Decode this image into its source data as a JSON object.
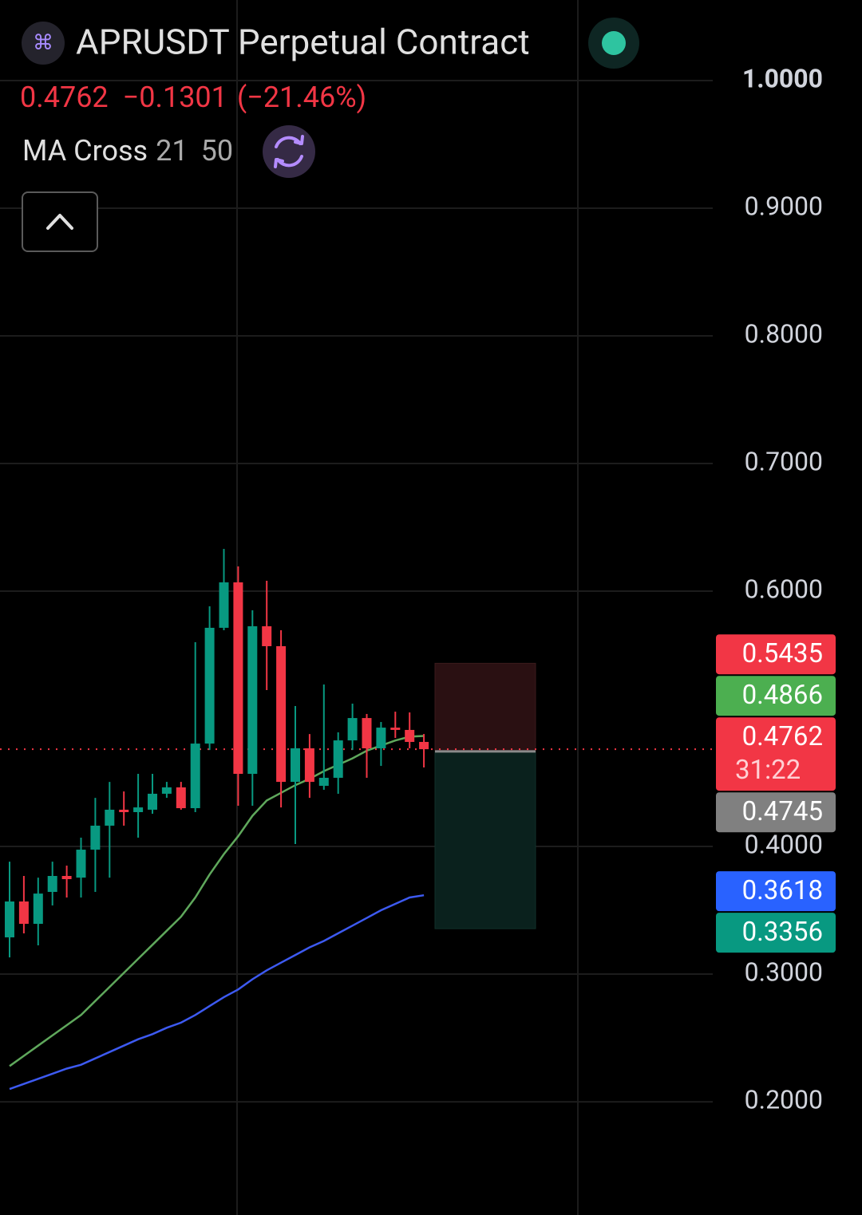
{
  "chart_data": {
    "type": "candlestick",
    "title": "APRUSDT Perpetual Contract",
    "last_price": 0.4762,
    "change": {
      "value": -0.1301,
      "label": "−0.1301"
    },
    "change_pct": {
      "value": -21.46,
      "label": "(−21.46%)"
    },
    "indicator": {
      "name": "MA Cross",
      "periods": [
        21,
        50
      ]
    },
    "up_color": "#089981",
    "down_color": "#f23645",
    "open": [
      0.3288,
      0.3569,
      0.3394,
      0.3644,
      0.3769,
      0.3756,
      0.3975,
      0.4163,
      0.4288,
      0.4269,
      0.4288,
      0.4413,
      0.4463,
      0.43,
      0.4806,
      0.5713,
      0.6069,
      0.4569,
      0.5725,
      0.5569,
      0.4506,
      0.4769,
      0.4475,
      0.4538,
      0.4831,
      0.5006,
      0.4769,
      0.4931,
      0.4913,
      0.4819
    ],
    "high": [
      0.3881,
      0.3769,
      0.3756,
      0.3881,
      0.385,
      0.4069,
      0.4381,
      0.4506,
      0.4431,
      0.4569,
      0.4569,
      0.4506,
      0.4506,
      0.56,
      0.5881,
      0.6331,
      0.6194,
      0.585,
      0.6081,
      0.5694,
      0.51,
      0.4881,
      0.5269,
      0.4894,
      0.5119,
      0.5038,
      0.4975,
      0.5056,
      0.505,
      0.4881
    ],
    "low": [
      0.3131,
      0.3319,
      0.3225,
      0.3538,
      0.36,
      0.36,
      0.3644,
      0.3756,
      0.4163,
      0.4069,
      0.4256,
      0.4381,
      0.4288,
      0.4269,
      0.4756,
      0.5694,
      0.4319,
      0.4319,
      0.5225,
      0.4306,
      0.4019,
      0.4381,
      0.4444,
      0.4413,
      0.4756,
      0.4538,
      0.4631,
      0.485,
      0.4769,
      0.4619
    ],
    "close": [
      0.3569,
      0.3394,
      0.3631,
      0.3769,
      0.3744,
      0.3975,
      0.4163,
      0.4288,
      0.4269,
      0.4306,
      0.4413,
      0.4463,
      0.43,
      0.4806,
      0.5713,
      0.6069,
      0.4569,
      0.5725,
      0.5569,
      0.4506,
      0.4769,
      0.4506,
      0.4538,
      0.4831,
      0.5006,
      0.4769,
      0.4931,
      0.4913,
      0.4819,
      0.4762
    ],
    "ma_lines": [
      {
        "color": "#5fa85c",
        "values": [
          0.228,
          0.236,
          0.244,
          0.252,
          0.26,
          0.268,
          0.279,
          0.29,
          0.301,
          0.312,
          0.323,
          0.334,
          0.345,
          0.36,
          0.378,
          0.394,
          0.408,
          0.424,
          0.436,
          0.442,
          0.448,
          0.453,
          0.459,
          0.464,
          0.469,
          0.475,
          0.479,
          0.483,
          0.486,
          0.4866
        ]
      },
      {
        "color": "#3d5af1",
        "values": [
          0.21,
          0.214,
          0.218,
          0.222,
          0.226,
          0.229,
          0.234,
          0.239,
          0.244,
          0.249,
          0.253,
          0.258,
          0.262,
          0.268,
          0.275,
          0.282,
          0.288,
          0.296,
          0.303,
          0.309,
          0.315,
          0.321,
          0.326,
          0.332,
          0.338,
          0.344,
          0.35,
          0.355,
          0.36,
          0.3618
        ]
      }
    ],
    "position": {
      "stop": 0.5435,
      "entry": 0.4745,
      "target": 0.3356
    },
    "price_labels": [
      {
        "value": 0.5435,
        "color": "#f23645"
      },
      {
        "value": 0.4866,
        "color": "#4caf50"
      },
      {
        "value": 0.4762,
        "sub": "31:22",
        "color": "#f23645"
      },
      {
        "value": 0.4745,
        "color": "#808080"
      },
      {
        "value": 0.3618,
        "color": "#2962ff"
      },
      {
        "value": 0.3356,
        "color": "#089981"
      }
    ],
    "ylim": [
      0.1113,
      1.0631
    ],
    "yticks": [
      {
        "value": 1.0,
        "label": "1.0000"
      },
      {
        "value": 0.9,
        "label": "0.9000"
      },
      {
        "value": 0.8,
        "label": "0.8000"
      },
      {
        "value": 0.7,
        "label": "0.7000"
      },
      {
        "value": 0.6,
        "label": "0.6000"
      },
      {
        "value": 0.4,
        "label": "0.4000"
      },
      {
        "value": 0.3,
        "label": "0.3000"
      },
      {
        "value": 0.2,
        "label": "0.2000"
      }
    ],
    "grid": true
  }
}
